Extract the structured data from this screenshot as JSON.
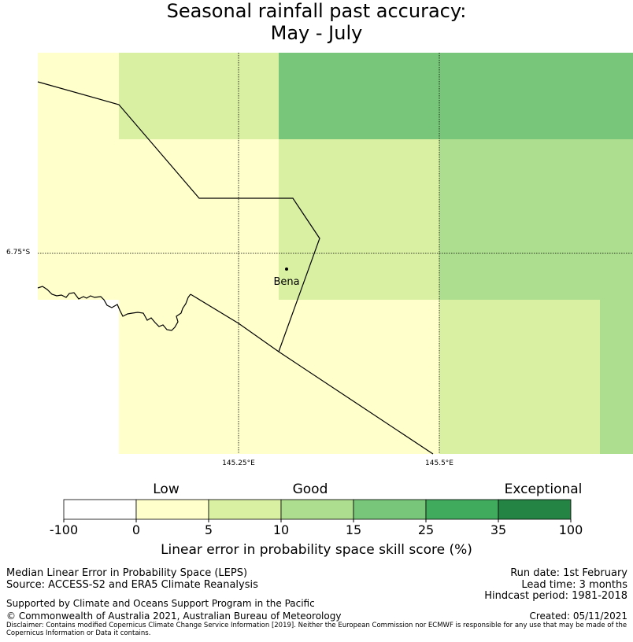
{
  "title": {
    "line1": "Seasonal rainfall past accuracy:",
    "line2": "May - July"
  },
  "map": {
    "lat_label": "6.75°S",
    "lon_labels": [
      "145.25°E",
      "145.5°E"
    ],
    "place": "Bena",
    "grid_cells": [
      {
        "row": 0,
        "col": 0,
        "score_band": "0-5",
        "color": "#ffffcc"
      },
      {
        "row": 0,
        "col": 1,
        "score_band": "5-10",
        "color": "#d9f0a3"
      },
      {
        "row": 0,
        "col": 2,
        "score_band": "15-25",
        "color": "#78c679"
      },
      {
        "row": 0,
        "col": 3,
        "score_band": "15-25",
        "color": "#78c679"
      },
      {
        "row": 1,
        "col": 0,
        "score_band": "0-5",
        "color": "#ffffcc"
      },
      {
        "row": 1,
        "col": 1,
        "score_band": "0-5",
        "color": "#ffffcc"
      },
      {
        "row": 1,
        "col": 2,
        "score_band": "5-10",
        "color": "#d9f0a3"
      },
      {
        "row": 1,
        "col": 3,
        "score_band": "10-15",
        "color": "#addd8e"
      },
      {
        "row": 2,
        "col": 1,
        "score_band": "0-5",
        "color": "#ffffcc"
      },
      {
        "row": 2,
        "col": 2,
        "score_band": "0-5",
        "color": "#ffffcc"
      },
      {
        "row": 2,
        "col": 3,
        "score_band": "5-10",
        "color": "#d9f0a3"
      },
      {
        "row": 2,
        "col": 4,
        "score_band": "10-15",
        "color": "#addd8e"
      }
    ]
  },
  "colorbar": {
    "categories": [
      "Low",
      "Good",
      "Exceptional"
    ],
    "ticks": [
      "-100",
      "0",
      "5",
      "10",
      "15",
      "25",
      "35",
      "100"
    ],
    "colors": [
      "#ffffff",
      "#ffffcc",
      "#d9f0a3",
      "#addd8e",
      "#78c679",
      "#41ab5d",
      "#238443"
    ],
    "label": "Linear error in probability space skill score (%)"
  },
  "footer": {
    "left1": "Median Linear Error in Probability Space (LEPS)",
    "left2": "Source: ACCESS-S2 and ERA5 Climate Reanalysis",
    "left3": "Supported by Climate and Oceans Support Program in the Pacific",
    "left4": "© Commonwealth of Australia 2021, Australian Bureau of Meteorology",
    "right1": "Run date: 1st February",
    "right2": "Lead time: 3 months",
    "right3": "Hindcast period: 1981-2018",
    "right4": "Created: 05/11/2021",
    "disclaimer": "Disclaimer: Contains modified Copernicus Climate Change Service Information [2019]. Neither the European Commission nor ECMWF is responsible for any use that may be made of the Copernicus Information or Data it contains."
  }
}
